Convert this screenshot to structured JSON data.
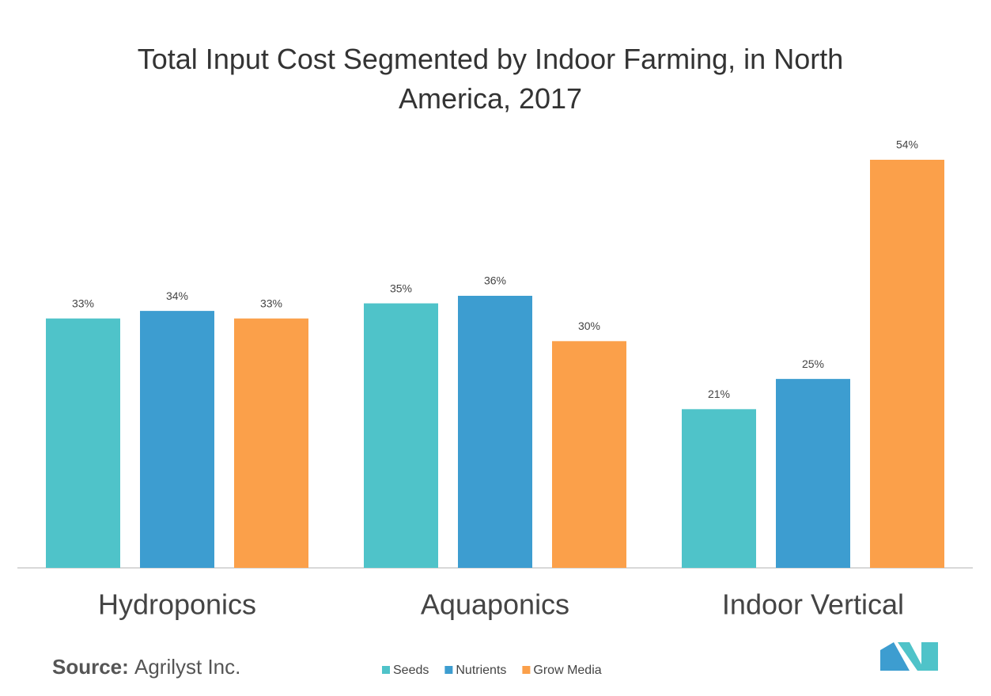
{
  "chart_data": {
    "type": "bar",
    "title": "Total Input Cost Segmented by Indoor Farming, in North America, 2017",
    "categories": [
      "Hydroponics",
      "Aquaponics",
      "Indoor Vertical"
    ],
    "series": [
      {
        "name": "Seeds",
        "color": "#4fc3c9",
        "values": [
          33,
          35,
          21
        ],
        "value_labels": [
          "33%",
          "35%",
          "21%"
        ]
      },
      {
        "name": "Nutrients",
        "color": "#3d9dd0",
        "values": [
          34,
          36,
          25
        ],
        "value_labels": [
          "34%",
          "36%",
          "25%"
        ]
      },
      {
        "name": "Grow Media",
        "color": "#fba04a",
        "values": [
          33,
          30,
          54
        ],
        "value_labels": [
          "33%",
          "30%",
          "54%"
        ]
      }
    ],
    "source": {
      "label": "Source:",
      "text": "Agrilyst Inc."
    }
  }
}
